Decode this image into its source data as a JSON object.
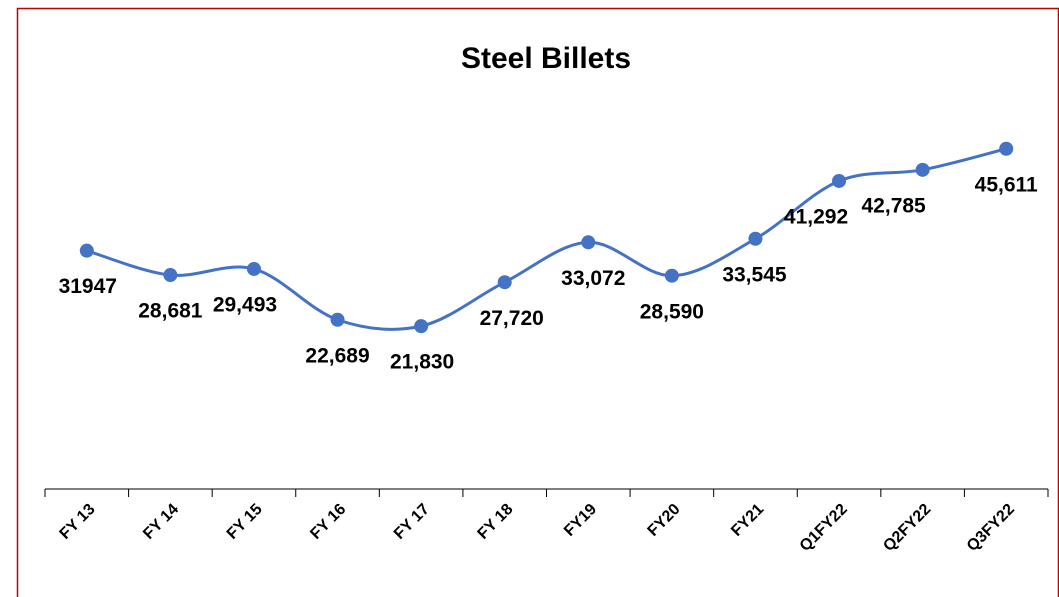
{
  "chart_data": {
    "type": "line",
    "title": "Steel Billets",
    "categories": [
      "FY 13",
      "FY 14",
      "FY 15",
      "FY 16",
      "FY 17",
      "FY 18",
      "FY19",
      "FY20",
      "FY21",
      "Q1FY22",
      "Q2FY22",
      "Q3FY22"
    ],
    "series": [
      {
        "name": "Steel Billets",
        "color": "#4472c4",
        "values": [
          31947,
          28681,
          29493,
          22689,
          21830,
          27720,
          33072,
          28590,
          33545,
          41292,
          42785,
          45611
        ],
        "value_labels": [
          "31947",
          "28,681",
          "29,493",
          "22,689",
          "21,830",
          "27,720",
          "33,072",
          "28,590",
          "33,545",
          "41,292",
          "42,785",
          "45,611"
        ]
      }
    ],
    "ylim": [
      0,
      50000
    ],
    "smooth": true
  }
}
